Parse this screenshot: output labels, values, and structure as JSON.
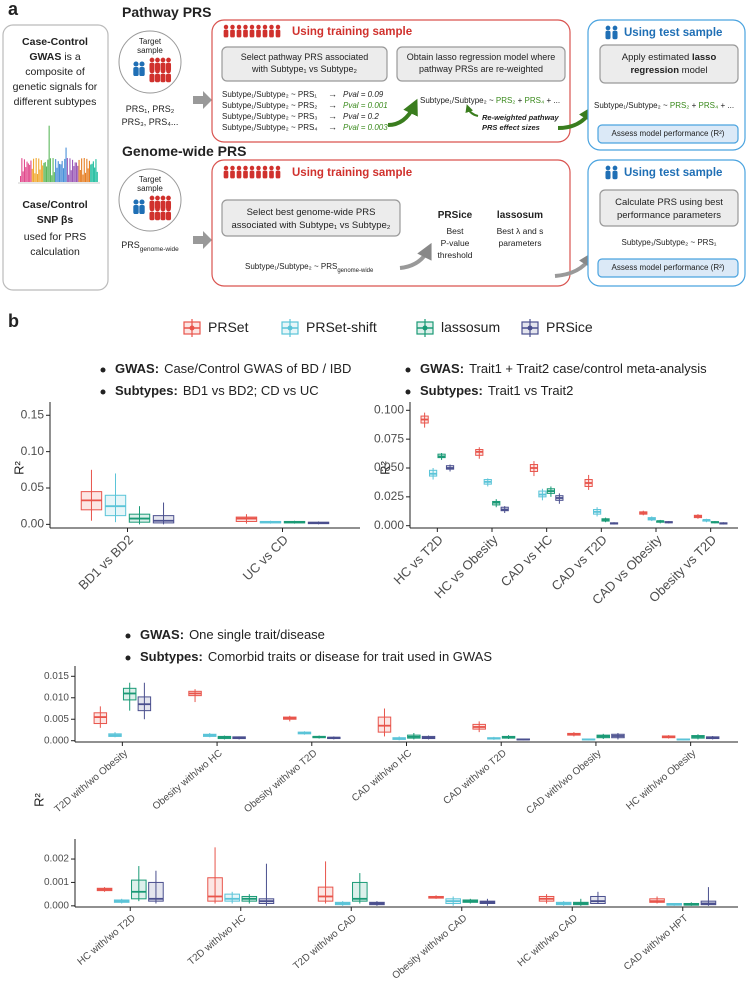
{
  "panel_a": {
    "label": "a",
    "left_box": {
      "top": [
        "Case-Control",
        "GWAS",
        " is a",
        "composite of",
        "genetic signals for",
        "different subtypes"
      ],
      "bottom": [
        "Case/Control",
        "SNP βs",
        "used for PRS",
        "calculation"
      ]
    },
    "pathway": {
      "title": "Pathway PRS",
      "target": [
        "Target",
        "sample"
      ],
      "prs": [
        "PRS₁, PRS₂",
        "PRS₃, PRS₄..."
      ],
      "training_header": "Using training sample",
      "select": [
        "Select pathway PRS associated",
        "with Subtype₁ vs Subtype₂"
      ],
      "lasso": [
        "Obtain lasso regression model where",
        "pathway PRSs are re-weighted"
      ],
      "associations": [
        {
          "model": "Subtype₁/Subtype₂ ~ PRS₁",
          "arrow": "→",
          "pval": "Pval = 0.09",
          "color": "#222222"
        },
        {
          "model": "Subtype₁/Subtype₂ ~ PRS₂",
          "arrow": "→",
          "pval": "Pval = 0.001",
          "color": "#3a8a1c"
        },
        {
          "model": "Subtype₁/Subtype₂ ~ PRS₃",
          "arrow": "→",
          "pval": "Pval = 0.2",
          "color": "#222222"
        },
        {
          "model": "Subtype₁/Subtype₂ ~ PRS₄",
          "arrow": "→",
          "pval": "Pval = 0.003",
          "color": "#3a8a1c"
        }
      ],
      "reweighted_model": [
        "Subtype₁/Subtype₂ ~ ",
        "PRS₂",
        " + ",
        "PRS₄",
        " + ..."
      ],
      "note": [
        "Re-weighted pathway",
        "PRS effect sizes"
      ],
      "test_header": "Using test sample",
      "apply": [
        "Apply estimated ",
        "lasso",
        "regression",
        " model"
      ],
      "test_model": [
        "Subtype₁/Subtype₂ ~ ",
        "PRS₂",
        " + ",
        "PRS₄",
        " + ..."
      ],
      "assess": "Assess model performance (R²)"
    },
    "genome": {
      "title": "Genome-wide PRS",
      "target": [
        "Target",
        "sample"
      ],
      "prs": [
        "PRS",
        "genome-wide"
      ],
      "training_header": "Using training sample",
      "select": [
        "Select best genome-wide PRS",
        "associated with Subtype₁ vs Subtype₂"
      ],
      "model": [
        "Subtype₁/Subtype₂ ~ PRS",
        "genome-wide"
      ],
      "prsice": {
        "title": "PRSice",
        "desc": [
          "Best",
          "P-value",
          "threshold"
        ]
      },
      "lassosum": {
        "title": "lassosum",
        "desc": [
          "Best λ and s",
          "parameters"
        ]
      },
      "test_header": "Using test sample",
      "calculate": [
        "Calculate PRS using best",
        "performance parameters"
      ],
      "test_model": "Subtype₁/Subtype₂ ~ PRS₁",
      "assess": "Assess model performance (R²)"
    }
  },
  "panel_b": {
    "label": "b",
    "legend": [
      {
        "name": "PRSet",
        "color": "#e8544b"
      },
      {
        "name": "PRSet-shift",
        "color": "#5bc4d8"
      },
      {
        "name": "lassosum",
        "color": "#1a9a76"
      },
      {
        "name": "PRSice",
        "color": "#4a4f8e"
      }
    ]
  },
  "chart_data": [
    {
      "type": "box",
      "bullets": [
        {
          "label": "GWAS:",
          "text": "Case/Control GWAS of BD / IBD"
        },
        {
          "label": "Subtypes:",
          "text": "BD1 vs BD2; CD vs UC"
        }
      ],
      "y_label": "R²",
      "categories": [
        "BD1 vs BD2",
        "UC vs CD"
      ],
      "ylim": [
        -0.005,
        0.16
      ],
      "yticks": [
        {
          "value": 0,
          "label": "0.00"
        },
        {
          "value": 0.05,
          "label": "0.05"
        },
        {
          "value": 0.1,
          "label": "0.10"
        },
        {
          "value": 0.15,
          "label": "0.15"
        }
      ],
      "series": [
        {
          "values": [
            [
              0.005,
              0.02,
              0.033,
              0.045,
              0.075
            ],
            [
              0.001,
              0.004,
              0.008,
              0.01,
              0.014
            ]
          ]
        },
        {
          "values": [
            [
              0.003,
              0.012,
              0.025,
              0.04,
              0.07
            ],
            [
              0.001,
              0.002,
              0.003,
              0.004,
              0.005
            ]
          ]
        },
        {
          "values": [
            [
              0,
              0.003,
              0.008,
              0.014,
              0.025
            ],
            [
              0.001,
              0.002,
              0.003,
              0.004,
              0.005
            ]
          ]
        },
        {
          "values": [
            [
              0,
              0.002,
              0.005,
              0.012,
              0.03
            ],
            [
              0,
              0.001,
              0.002,
              0.003,
              0.004
            ]
          ]
        }
      ]
    },
    {
      "type": "box",
      "bullets": [
        {
          "label": "GWAS:",
          "text": "Trait1 + Trait2 case/control meta-analysis"
        },
        {
          "label": "Subtypes:",
          "text": "Trait1 vs Trait2"
        }
      ],
      "y_label": "R²",
      "categories": [
        "HC vs T2D",
        "HC vs Obesity",
        "CAD vs HC",
        "CAD vs T2D",
        "CAD vs Obesity",
        "Obesity vs T2D"
      ],
      "ylim": [
        -0.002,
        0.102
      ],
      "yticks": [
        {
          "value": 0,
          "label": "0.000"
        },
        {
          "value": 0.025,
          "label": "0.025"
        },
        {
          "value": 0.05,
          "label": "0.050"
        },
        {
          "value": 0.075,
          "label": "0.075"
        },
        {
          "value": 0.1,
          "label": "0.100"
        }
      ],
      "series": [
        {
          "values": [
            [
              0.085,
              0.089,
              0.092,
              0.095,
              0.098
            ],
            [
              0.058,
              0.061,
              0.064,
              0.066,
              0.068
            ],
            [
              0.043,
              0.047,
              0.05,
              0.053,
              0.056
            ],
            [
              0.031,
              0.034,
              0.037,
              0.04,
              0.044
            ],
            [
              0.009,
              0.01,
              0.011,
              0.012,
              0.013
            ],
            [
              0.006,
              0.007,
              0.008,
              0.009,
              0.01
            ]
          ]
        },
        {
          "values": [
            [
              0.04,
              0.043,
              0.045,
              0.048,
              0.05
            ],
            [
              0.034,
              0.036,
              0.038,
              0.04,
              0.041
            ],
            [
              0.022,
              0.025,
              0.027,
              0.03,
              0.032
            ],
            [
              0.008,
              0.01,
              0.012,
              0.014,
              0.016
            ],
            [
              0.004,
              0.005,
              0.006,
              0.007,
              0.008
            ],
            [
              0.003,
              0.004,
              0.005,
              0.005,
              0.006
            ]
          ]
        },
        {
          "values": [
            [
              0.057,
              0.059,
              0.06,
              0.062,
              0.063
            ],
            [
              0.016,
              0.018,
              0.02,
              0.021,
              0.023
            ],
            [
              0.025,
              0.028,
              0.03,
              0.032,
              0.034
            ],
            [
              0.003,
              0.004,
              0.005,
              0.006,
              0.007
            ],
            [
              0.002,
              0.003,
              0.004,
              0.004,
              0.005
            ],
            [
              0.002,
              0.0025,
              0.003,
              0.0035,
              0.004
            ]
          ]
        },
        {
          "values": [
            [
              0.047,
              0.049,
              0.05,
              0.052,
              0.053
            ],
            [
              0.011,
              0.013,
              0.014,
              0.016,
              0.017
            ],
            [
              0.019,
              0.022,
              0.024,
              0.026,
              0.028
            ],
            [
              0.001,
              0.0015,
              0.002,
              0.0025,
              0.003
            ],
            [
              0.002,
              0.0025,
              0.003,
              0.0035,
              0.004
            ],
            [
              0.001,
              0.0015,
              0.002,
              0.0025,
              0.003
            ]
          ]
        }
      ]
    },
    {
      "type": "box",
      "bullets": [
        {
          "label": "GWAS:",
          "text": "One single trait/disease"
        },
        {
          "label": "Subtypes:",
          "text": "Comorbid traits or disease for trait used in GWAS"
        }
      ],
      "y_label": "R²",
      "categories": [
        "T2D with/wo Obesity",
        "Obesity with/wo HC",
        "Obesity with/wo T2D",
        "CAD with/wo HC",
        "CAD with/wo T2D",
        "CAD with/wo Obesity",
        "HC with/wo Obesity"
      ],
      "ylim": [
        -0.0003,
        0.016
      ],
      "yticks": [
        {
          "value": 0,
          "label": "0.000"
        },
        {
          "value": 0.005,
          "label": "0.005"
        },
        {
          "value": 0.01,
          "label": "0.010"
        },
        {
          "value": 0.015,
          "label": "0.015"
        }
      ],
      "series": [
        {
          "values": [
            [
              0.003,
              0.004,
              0.0055,
              0.0065,
              0.008
            ],
            [
              0.009,
              0.0105,
              0.011,
              0.0115,
              0.012
            ],
            [
              0.0045,
              0.005,
              0.0052,
              0.0055,
              0.0058
            ],
            [
              0.001,
              0.002,
              0.0035,
              0.0055,
              0.0075
            ],
            [
              0.002,
              0.0027,
              0.0032,
              0.0038,
              0.0045
            ],
            [
              0.001,
              0.0013,
              0.0015,
              0.0017,
              0.002
            ],
            [
              0.0005,
              0.0007,
              0.0009,
              0.0011,
              0.0013
            ]
          ]
        },
        {
          "values": [
            [
              0.0008,
              0.001,
              0.0013,
              0.0016,
              0.002
            ],
            [
              0.0008,
              0.001,
              0.0013,
              0.0015,
              0.0018
            ],
            [
              0.0014,
              0.0016,
              0.0018,
              0.002,
              0.0022
            ],
            [
              0.0001,
              0.0003,
              0.0005,
              0.0007,
              0.001
            ],
            [
              0.0002,
              0.0004,
              0.0005,
              0.0007,
              0.0009
            ],
            [
              0.0001,
              0.0002,
              0.0003,
              0.0004,
              0.0005
            ],
            [
              0.0001,
              0.0002,
              0.0003,
              0.0004,
              0.0005
            ]
          ]
        },
        {
          "values": [
            [
              0.007,
              0.0095,
              0.011,
              0.0122,
              0.0135
            ],
            [
              0.0003,
              0.0005,
              0.0008,
              0.001,
              0.0012
            ],
            [
              0.0005,
              0.0007,
              0.0009,
              0.001,
              0.0012
            ],
            [
              0.0003,
              0.0006,
              0.0009,
              0.0013,
              0.0018
            ],
            [
              0.0004,
              0.0006,
              0.0008,
              0.001,
              0.0013
            ],
            [
              0.0004,
              0.0007,
              0.001,
              0.0013,
              0.0016
            ],
            [
              0.0003,
              0.0006,
              0.0009,
              0.0012,
              0.0015
            ]
          ]
        },
        {
          "values": [
            [
              0.005,
              0.007,
              0.0085,
              0.0102,
              0.0135
            ],
            [
              0.0003,
              0.0005,
              0.0007,
              0.0009,
              0.001
            ],
            [
              0.0003,
              0.0005,
              0.0007,
              0.0008,
              0.001
            ],
            [
              0.0003,
              0.0005,
              0.0007,
              0.001,
              0.0012
            ],
            [
              0.0001,
              0.0002,
              0.0003,
              0.0004,
              0.0005
            ],
            [
              0.0003,
              0.0007,
              0.0011,
              0.0015,
              0.0018
            ],
            [
              0.0003,
              0.0005,
              0.0007,
              0.0009,
              0.0011
            ]
          ]
        }
      ]
    },
    {
      "type": "box",
      "categories": [
        "HC with/wo T2D",
        "T2D with/wo HC",
        "T2D with/wo CAD",
        "Obesity with/wo CAD",
        "HC with/wo CAD",
        "CAD with/wo HPT"
      ],
      "ylim": [
        -5e-05,
        0.0026
      ],
      "yticks": [
        {
          "value": 0,
          "label": "0.000"
        },
        {
          "value": 0.001,
          "label": "0.001"
        },
        {
          "value": 0.002,
          "label": "0.002"
        }
      ],
      "series": [
        {
          "values": [
            [
              0.0006,
              0.00065,
              0.0007,
              0.00075,
              0.0008
            ],
            [
              0.0001,
              0.0002,
              0.0004,
              0.0012,
              0.0025
            ],
            [
              0.0001,
              0.0002,
              0.0004,
              0.0008,
              0.0019
            ],
            [
              0.0003,
              0.00033,
              0.00037,
              0.0004,
              0.00045
            ],
            [
              0.0001,
              0.0002,
              0.0003,
              0.0004,
              0.0005
            ],
            [
              0.0001,
              0.00015,
              0.0002,
              0.0003,
              0.0004
            ]
          ]
        },
        {
          "values": [
            [
              0.0001,
              0.00015,
              0.0002,
              0.00025,
              0.0003
            ],
            [
              0.0001,
              0.0002,
              0.0003,
              0.0005,
              0.0006
            ],
            [
              0,
              5e-05,
              0.0001,
              0.00015,
              0.0002
            ],
            [
              0,
              0.0001,
              0.0002,
              0.0003,
              0.0004
            ],
            [
              0,
              5e-05,
              0.0001,
              0.00015,
              0.0002
            ],
            [
              0,
              3e-05,
              5e-05,
              0.0001,
              0.0001
            ]
          ]
        },
        {
          "values": [
            [
              0.0002,
              0.0003,
              0.0006,
              0.0011,
              0.0017
            ],
            [
              0.0001,
              0.0002,
              0.0003,
              0.0004,
              0.0005
            ],
            [
              0.0001,
              0.0002,
              0.0003,
              0.001,
              0.0014
            ],
            [
              0.0001,
              0.00015,
              0.0002,
              0.00025,
              0.0003
            ],
            [
              0,
              5e-05,
              0.0001,
              0.00015,
              0.0003
            ],
            [
              0,
              3e-05,
              5e-05,
              0.0001,
              0.00015
            ]
          ]
        },
        {
          "values": [
            [
              0.0001,
              0.0002,
              0.0003,
              0.001,
              0.0015
            ],
            [
              0,
              0.0001,
              0.0002,
              0.0003,
              0.0018
            ],
            [
              0,
              5e-05,
              0.0001,
              0.00015,
              0.0002
            ],
            [
              0,
              0.0001,
              0.00015,
              0.0002,
              0.0003
            ],
            [
              0.0001,
              0.0001,
              0.0002,
              0.0004,
              0.0006
            ],
            [
              0,
              5e-05,
              0.0001,
              0.0002,
              0.0008
            ]
          ]
        }
      ]
    }
  ]
}
